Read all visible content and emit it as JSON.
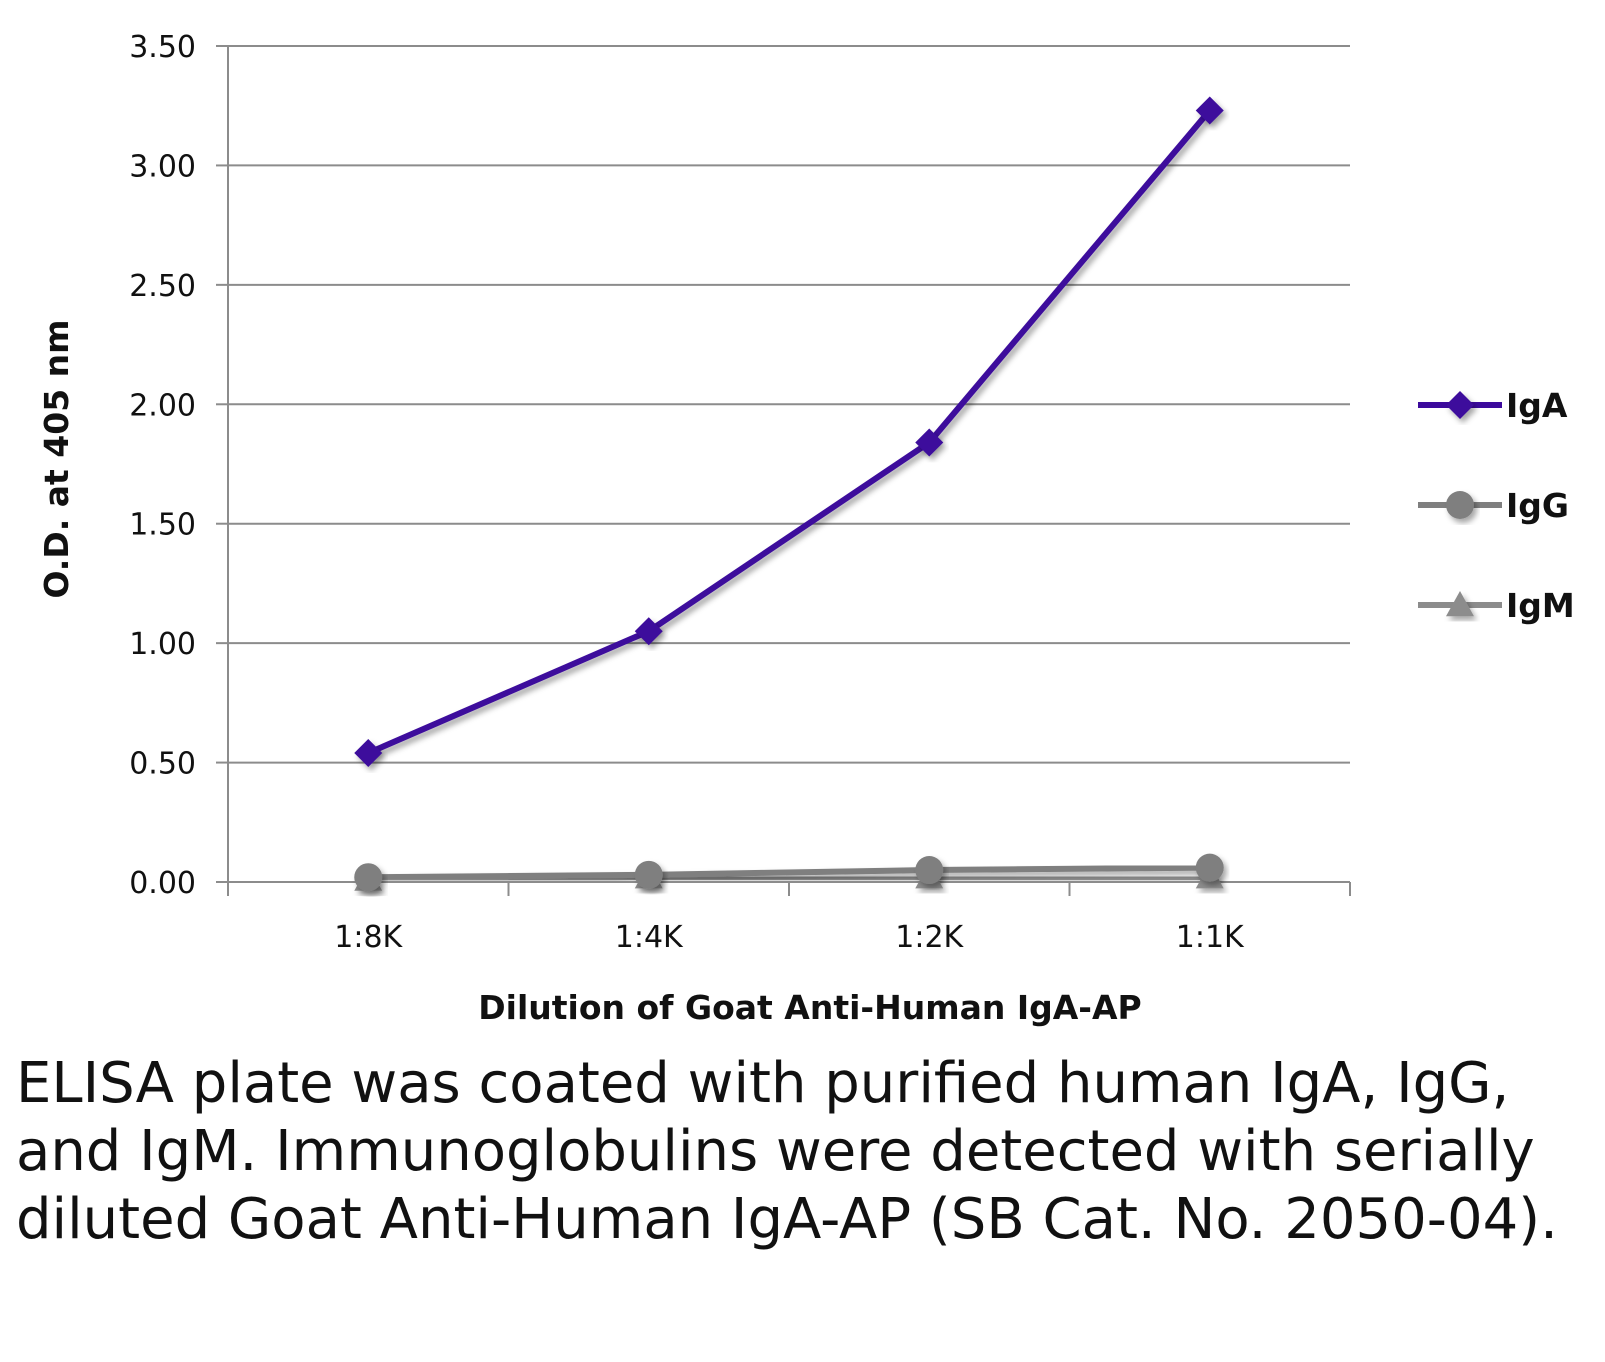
{
  "chart_data": {
    "type": "line",
    "title": "",
    "xlabel": "Dilution of Goat Anti-Human IgA-AP",
    "ylabel": "O.D. at 405 nm",
    "categories": [
      "1:8K",
      "1:4K",
      "1:2K",
      "1:1K"
    ],
    "ylim": [
      0,
      3.5
    ],
    "yticks": [
      "0.00",
      "0.50",
      "1.00",
      "1.50",
      "2.00",
      "2.50",
      "3.00",
      "3.50"
    ],
    "grid": true,
    "legend_position": "right",
    "series": [
      {
        "name": "IgA",
        "values": [
          0.54,
          1.05,
          1.84,
          3.23
        ],
        "color": "#3c0a9c",
        "marker": "diamond"
      },
      {
        "name": "IgG",
        "values": [
          0.02,
          0.03,
          0.05,
          0.06
        ],
        "color": "#7f7f7f",
        "marker": "circle"
      },
      {
        "name": "IgM",
        "values": [
          0.01,
          0.02,
          0.02,
          0.02
        ],
        "color": "#8c8c8c",
        "marker": "triangle"
      }
    ]
  },
  "caption": "ELISA plate was coated with purified human IgA, IgG, and IgM.  Immunoglobulins were detected with serially diluted Goat Anti-Human IgA-AP (SB Cat. No. 2050-04)."
}
